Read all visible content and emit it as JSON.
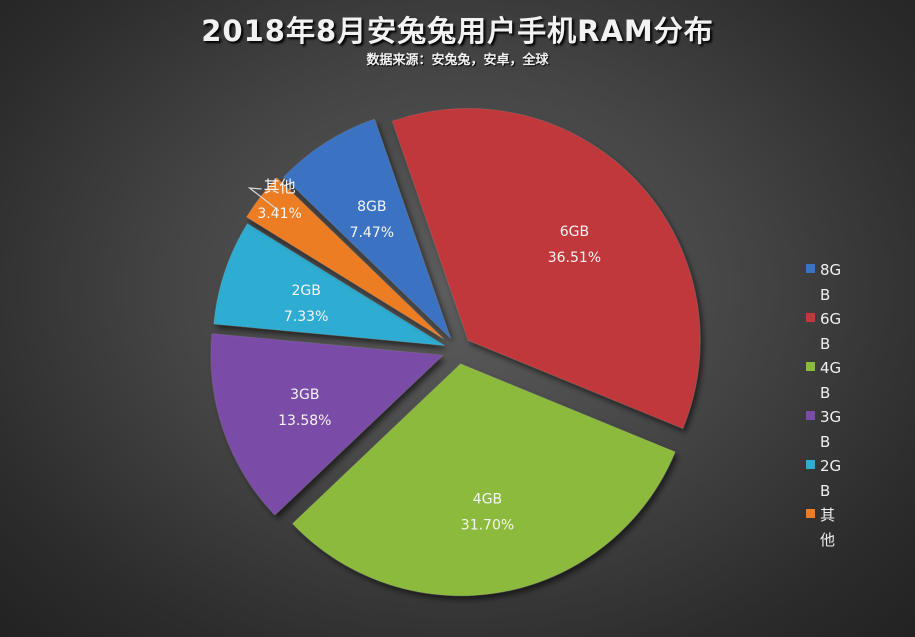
{
  "title": "2018年8月安兔兔用户手机RAM分布",
  "subtitle": "数据来源：安兔兔，安卓，全球",
  "chart_data": {
    "type": "pie",
    "title": "2018年8月安兔兔用户手机RAM分布",
    "subtitle": "数据来源：安兔兔，安卓，全球",
    "slices": [
      {
        "label": "8GB",
        "value": 7.47,
        "value_label": "7.47%",
        "color": "#3a73c2"
      },
      {
        "label": "6GB",
        "value": 36.51,
        "value_label": "36.51%",
        "color": "#c0393a"
      },
      {
        "label": "4GB",
        "value": 31.7,
        "value_label": "31.70%",
        "color": "#8cba3d"
      },
      {
        "label": "3GB",
        "value": 13.58,
        "value_label": "13.58%",
        "color": "#7a4ca7"
      },
      {
        "label": "2GB",
        "value": 7.33,
        "value_label": "7.33%",
        "color": "#2eacd1"
      },
      {
        "label": "其他",
        "value": 3.41,
        "value_label": "3.41%",
        "color": "#ec7d24"
      }
    ],
    "legend_position": "right",
    "exploded": true
  }
}
